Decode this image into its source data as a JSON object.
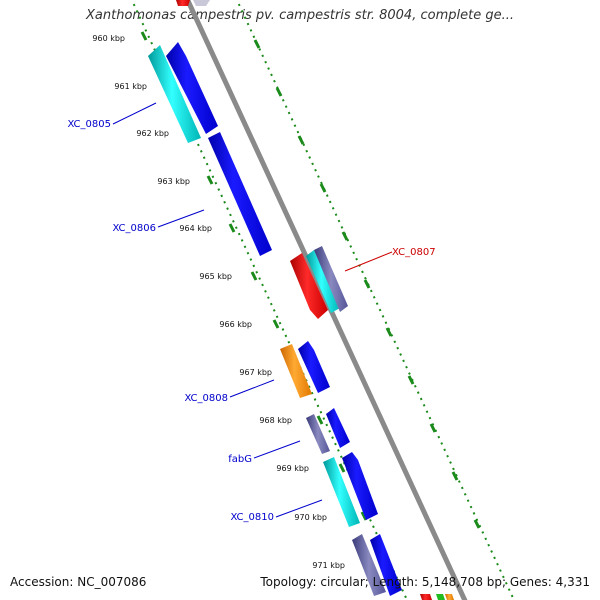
{
  "title": "Xanthomonas campestris pv. campestris str. 8004, complete ge...",
  "footer": {
    "accession": "Accession: NC_007086",
    "summary": "Topology: circular; Length: 5,148,708 bp; Genes: 4,331"
  },
  "ticks": [
    "960 kbp",
    "961 kbp",
    "962 kbp",
    "963 kbp",
    "964 kbp",
    "965 kbp",
    "966 kbp",
    "967 kbp",
    "968 kbp",
    "969 kbp",
    "970 kbp",
    "971 kbp"
  ],
  "gene_labels": [
    {
      "text": "XC_0805",
      "color": "#0000cc"
    },
    {
      "text": "XC_0806",
      "color": "#0000cc"
    },
    {
      "text": "XC_0807",
      "color": "#cc0000"
    },
    {
      "text": "XC_0808",
      "color": "#0000cc"
    },
    {
      "text": "fabG",
      "color": "#0000cc"
    },
    {
      "text": "XC_0810",
      "color": "#0000cc"
    }
  ],
  "colors": {
    "backbone": "#888888",
    "tick_dots": "#1a8a1a",
    "cds_blue": "#0000ee",
    "cyan": "#00cccc",
    "red": "#ee0000",
    "orange": "#ff8c00",
    "slate": "#6a6aa8"
  }
}
